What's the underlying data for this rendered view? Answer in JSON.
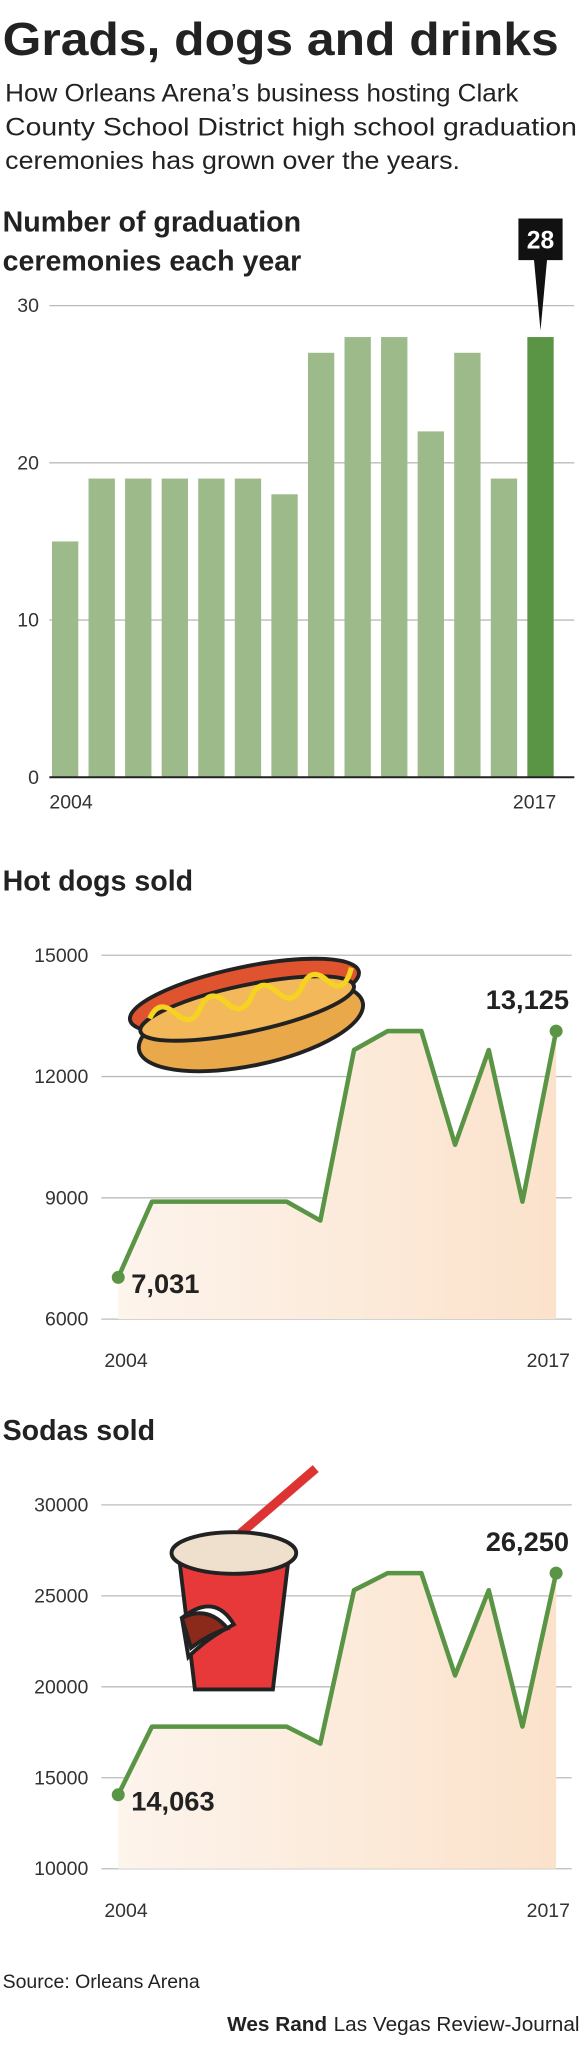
{
  "title": "Grads, dogs and drinks",
  "subtitle": [
    "How Orleans Arena’s business hosting Clark",
    "County School District high school graduation",
    "ceremonies has grown over the years."
  ],
  "source": "Source: Orleans Arena",
  "credit_name": "Wes Rand",
  "credit_org": "Las Vegas Review-Journal",
  "chart_data": [
    {
      "type": "bar",
      "title": [
        "Number of graduation",
        "ceremonies each year"
      ],
      "categories": [
        "2004",
        null,
        null,
        null,
        null,
        null,
        null,
        null,
        null,
        null,
        null,
        null,
        null,
        "2017"
      ],
      "values": [
        15,
        19,
        19,
        19,
        19,
        19,
        18,
        27,
        28,
        28,
        22,
        27,
        19,
        28
      ],
      "colors": [
        "#9cba8a",
        "#9cba8a",
        "#9cba8a",
        "#9cba8a",
        "#9cba8a",
        "#9cba8a",
        "#9cba8a",
        "#9cba8a",
        "#9cba8a",
        "#9cba8a",
        "#9cba8a",
        "#9cba8a",
        "#9cba8a",
        "#5a9445"
      ],
      "ylim": [
        0,
        30
      ],
      "yticks": [
        0,
        10,
        20,
        30
      ],
      "grid": true
    },
    {
      "type": "line",
      "title": "Hot dogs sold",
      "categories": [
        "2004",
        null,
        null,
        null,
        null,
        null,
        null,
        null,
        null,
        null,
        null,
        null,
        null,
        "2017"
      ],
      "values": [
        7031,
        8906,
        8906,
        8906,
        8906,
        8906,
        8438,
        12656,
        13125,
        13125,
        10313,
        12656,
        8906,
        13125
      ],
      "value_labels": [
        "7,031",
        null,
        null,
        null,
        null,
        null,
        null,
        null,
        null,
        null,
        null,
        null,
        null,
        "13,125"
      ],
      "color": "#5a9445",
      "ylim": [
        6000,
        15000
      ],
      "yticks": [
        6000,
        9000,
        12000,
        15000
      ],
      "grid": true
    },
    {
      "type": "line",
      "title": "Sodas sold",
      "categories": [
        "2004",
        null,
        null,
        null,
        null,
        null,
        null,
        null,
        null,
        null,
        null,
        null,
        null,
        "2017"
      ],
      "values": [
        14063,
        17813,
        17813,
        17813,
        17813,
        17813,
        16875,
        25313,
        26250,
        26250,
        20625,
        25313,
        17813,
        26250
      ],
      "value_labels": [
        "14,063",
        null,
        null,
        null,
        null,
        null,
        null,
        null,
        null,
        null,
        null,
        null,
        null,
        "26,250"
      ],
      "color": "#5a9445",
      "ylim": [
        10000,
        30000
      ],
      "yticks": [
        10000,
        15000,
        20000,
        25000,
        30000
      ],
      "grid": true
    }
  ]
}
